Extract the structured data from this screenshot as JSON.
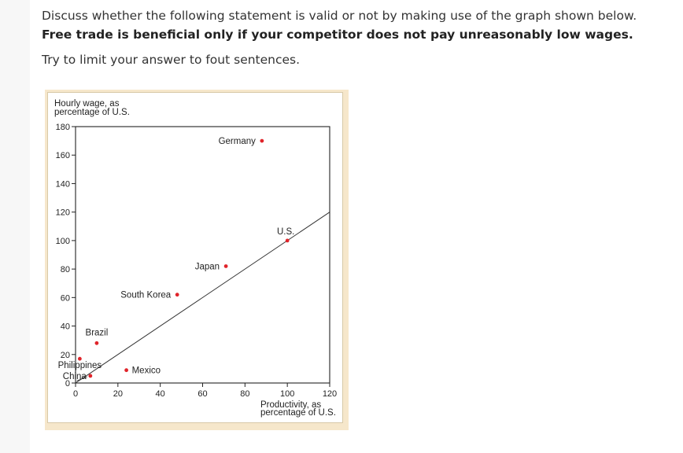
{
  "question": {
    "line1": "Discuss whether the following statement is valid or not by making use of the graph shown below.",
    "line2": "Free trade is beneficial only if your competitor does not pay unreasonably low wages.",
    "line3": "Try to limit your answer to fout sentences."
  },
  "chart_data": {
    "type": "scatter",
    "ylabel_lines": [
      "Hourly wage, as",
      "percentage of U.S."
    ],
    "xlabel_lines": [
      "Productivity, as",
      "percentage of U.S."
    ],
    "xlim": [
      0,
      120
    ],
    "ylim": [
      0,
      180
    ],
    "x_ticks": [
      "0",
      "20",
      "40",
      "60",
      "80",
      "100",
      "120"
    ],
    "y_ticks": [
      "0",
      "20",
      "40",
      "60",
      "80",
      "100",
      "120",
      "140",
      "160",
      "180"
    ],
    "reference_line": {
      "from": [
        0,
        0
      ],
      "to": [
        120,
        120
      ]
    },
    "points": [
      {
        "name": "Germany",
        "x": 88,
        "y": 170
      },
      {
        "name": "U.S.",
        "x": 100,
        "y": 100
      },
      {
        "name": "Japan",
        "x": 71,
        "y": 82
      },
      {
        "name": "South Korea",
        "x": 48,
        "y": 62
      },
      {
        "name": "Brazil",
        "x": 10,
        "y": 28
      },
      {
        "name": "Philippines",
        "x": 2,
        "y": 17
      },
      {
        "name": "Mexico",
        "x": 24,
        "y": 9
      },
      {
        "name": "China",
        "x": 7,
        "y": 5
      }
    ],
    "marker_color": "#e0242a"
  }
}
